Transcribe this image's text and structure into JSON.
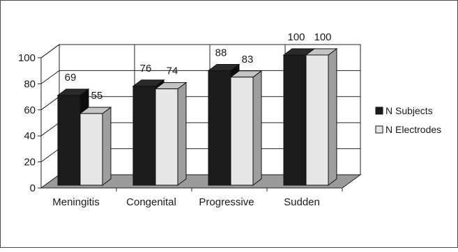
{
  "chart_data": {
    "type": "bar",
    "style": "3d-clustered-column",
    "categories": [
      "Meningitis",
      "Congenital",
      "Progressive",
      "Sudden"
    ],
    "series": [
      {
        "name": "N Subjects",
        "values": [
          69,
          76,
          88,
          100
        ],
        "color": "#1c1c1c",
        "side_color": "#0d0d0d",
        "top_color": "#2a2a2a"
      },
      {
        "name": "N Electrodes",
        "values": [
          55,
          74,
          83,
          100
        ],
        "color": "#e6e6e6",
        "side_color": "#9e9e9e",
        "top_color": "#c4c4c4"
      }
    ],
    "data_labels": [
      [
        "69",
        "76",
        "88",
        "100"
      ],
      [
        "55",
        "74",
        "83",
        "100"
      ]
    ],
    "title": "",
    "xlabel": "",
    "ylabel": "",
    "ylim": [
      0,
      100
    ],
    "yticks": [
      0,
      20,
      40,
      60,
      80,
      100
    ],
    "ytick_labels": [
      "0",
      "20",
      "40",
      "60",
      "80",
      "100"
    ],
    "grid": true,
    "legend_position": "right",
    "floor_color": "#9a9a9a"
  }
}
